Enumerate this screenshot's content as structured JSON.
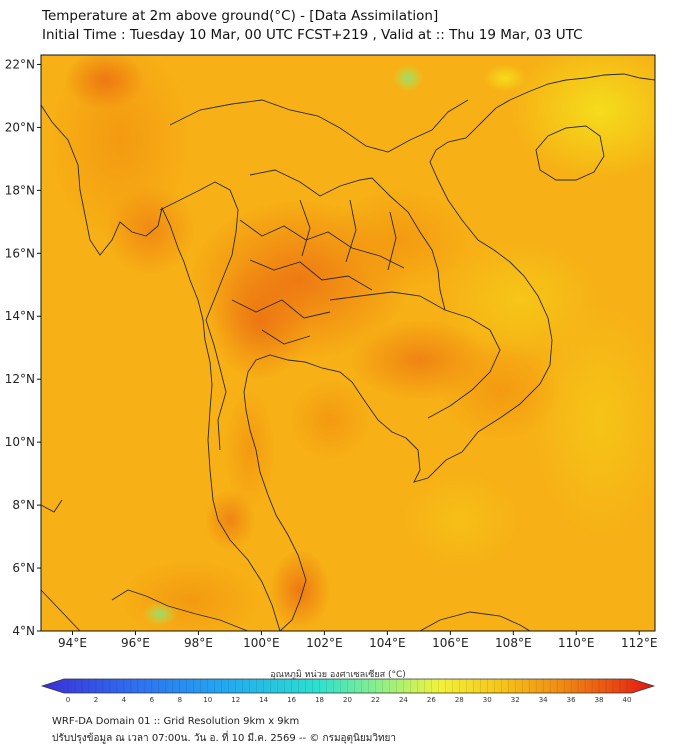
{
  "header": {
    "title_line1": "Temperature at 2m above ground(°C) - [Data Assimilation]",
    "title_line2": "Initial Time : Tuesday 10 Mar, 00 UTC FCST+219 , Valid at :: Thu 19 Mar, 03 UTC"
  },
  "map": {
    "lon_labels": [
      "94°E",
      "96°E",
      "98°E",
      "100°E",
      "102°E",
      "104°E",
      "106°E",
      "108°E",
      "110°E",
      "112°E"
    ],
    "lat_labels": [
      "22°N",
      "20°N",
      "18°N",
      "16°N",
      "14°N",
      "12°N",
      "10°N",
      "8°N",
      "6°N",
      "4°N"
    ],
    "lon_values": [
      94,
      96,
      98,
      100,
      102,
      104,
      106,
      108,
      110,
      112
    ],
    "lat_values": [
      22,
      20,
      18,
      16,
      14,
      12,
      10,
      8,
      6,
      4
    ],
    "field_base_color": "#f7b015",
    "hot_color": "#ee7a14",
    "cool_color": "#c8e23a"
  },
  "colorbar": {
    "title": "อุณหภูมิ หน่วย องศาเซลเซียส (°C)",
    "tick_labels": [
      "0",
      "2",
      "4",
      "6",
      "8",
      "10",
      "12",
      "14",
      "16",
      "18",
      "20",
      "22",
      "24",
      "26",
      "28",
      "30",
      "32",
      "34",
      "36",
      "38",
      "40"
    ],
    "min": 0,
    "max": 40
  },
  "footer": {
    "line1": "WRF-DA Domain 01 :: Grid Resolution 9km x 9km",
    "line2": "ปรับปรุงข้อมูล ณ เวลา 07:00น. วัน อ. ที่ 10 มี.ค. 2569 -- © กรมอุตุนิยมวิทยา"
  }
}
